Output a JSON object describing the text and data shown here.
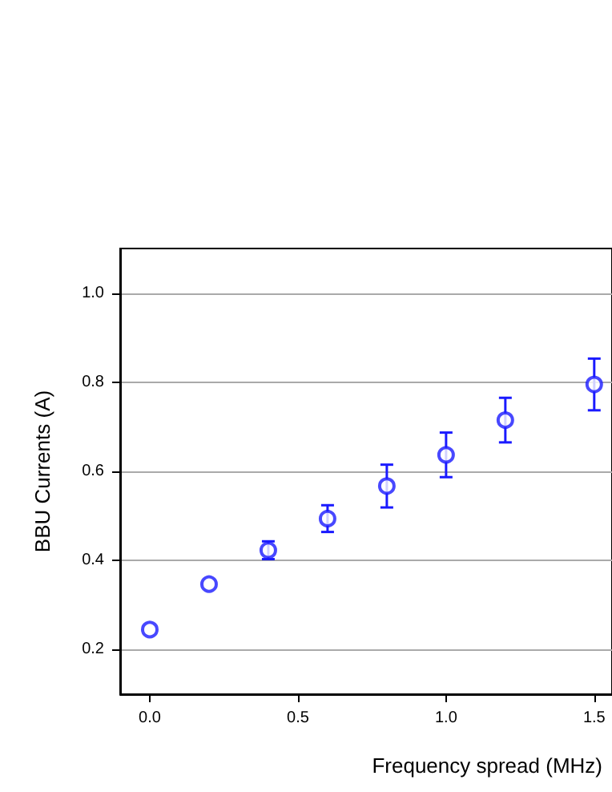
{
  "chart_data": {
    "type": "scatter",
    "xlabel": "Frequency spread (MHz)",
    "ylabel": "BBU Currents (A)",
    "x": [
      0,
      0.2,
      0.4,
      0.6,
      0.8,
      1.0,
      1.2,
      1.5
    ],
    "series": [
      {
        "color": "#1a1aff",
        "values": [
          0.245,
          0.347,
          0.423,
          0.494,
          0.567,
          0.637,
          0.715,
          0.795
        ],
        "errors": [
          null,
          null,
          0.02,
          0.03,
          0.048,
          0.05,
          0.05,
          0.058
        ]
      }
    ],
    "xlim": [
      -0.1,
      1.56
    ],
    "xticks": [
      {
        "value": 0,
        "label": "0.0"
      },
      0.5,
      {
        "value": 1,
        "label": "1.0"
      },
      1.5
    ],
    "ylim": [
      0.1,
      1.1
    ],
    "yticks": [
      0.2,
      0.4,
      0.6,
      0.8,
      {
        "value": 1,
        "label": "1.0"
      }
    ],
    "grid": "y",
    "marker": "circle"
  }
}
